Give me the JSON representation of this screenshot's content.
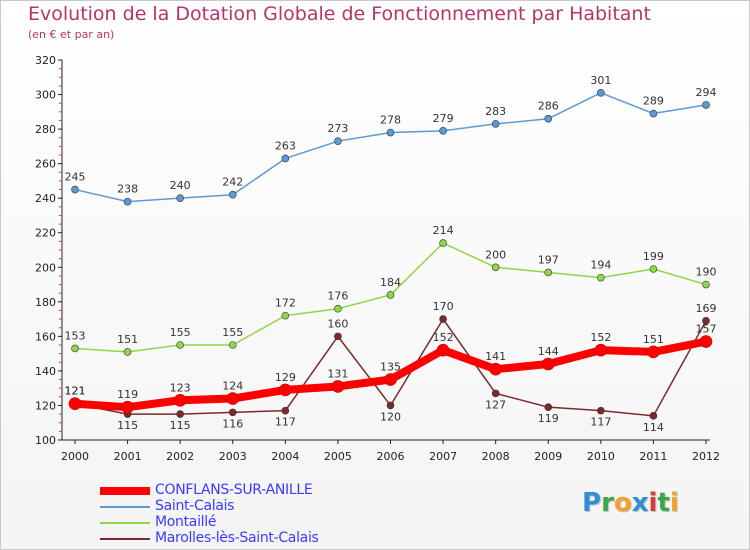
{
  "title": "Evolution de la Dotation Globale de Fonctionnement par Habitant",
  "subtitle": "(en € et par an)",
  "logo": {
    "letters": [
      "P",
      "r",
      "o",
      "x",
      "i",
      "t",
      "i"
    ],
    "colors": [
      "#2f8fd6",
      "#3aa64a",
      "#f2a22a",
      "#2f8fd6",
      "#d83a3a",
      "#3aa64a",
      "#f2a22a"
    ]
  },
  "chart_data": {
    "type": "line",
    "title": "Evolution de la Dotation Globale de Fonctionnement par Habitant",
    "subtitle": "(en € et par an)",
    "x": [
      "2000",
      "2001",
      "2002",
      "2003",
      "2004",
      "2005",
      "2006",
      "2007",
      "2008",
      "2009",
      "2010",
      "2011",
      "2012"
    ],
    "ylim": [
      100,
      320
    ],
    "yticks": [
      100,
      120,
      140,
      160,
      180,
      200,
      220,
      240,
      260,
      280,
      300,
      320
    ],
    "grid": false,
    "legend_position": "bottom-left",
    "series": [
      {
        "name": "CONFLANS-SUR-ANILLE",
        "color": "#ff0000",
        "values": [
          121,
          119,
          123,
          124,
          129,
          131,
          135,
          152,
          141,
          144,
          152,
          151,
          157
        ],
        "labels": [
          "121",
          "119",
          "123",
          "124",
          "129",
          "131",
          "135",
          "152",
          "141",
          "144",
          "152",
          "151",
          "157"
        ]
      },
      {
        "name": "Saint-Calais",
        "color": "#5b9bd5",
        "values": [
          245,
          238,
          240,
          242,
          263,
          273,
          278,
          279,
          283,
          286,
          301,
          289,
          294
        ],
        "labels": [
          "245",
          "238",
          "240",
          "242",
          "263",
          "273",
          "278",
          "279",
          "283",
          "286",
          "301",
          "289",
          "294"
        ]
      },
      {
        "name": "Montaillé",
        "color": "#8ed64a",
        "values": [
          153,
          151,
          155,
          155,
          172,
          176,
          184,
          214,
          200,
          197,
          194,
          199,
          190
        ],
        "labels": [
          "153",
          "151",
          "155",
          "155",
          "172",
          "176",
          "184",
          "214",
          "200",
          "197",
          "194",
          "199",
          "190"
        ]
      },
      {
        "name": "Marolles-lès-Saint-Calais",
        "color": "#7a2a2a",
        "values": [
          121,
          115,
          115,
          116,
          117,
          160,
          120,
          170,
          127,
          119,
          117,
          114,
          169
        ],
        "labels": [
          "121",
          "115",
          "115",
          "116",
          "117",
          "160",
          "120",
          "170",
          "127",
          "119",
          "117",
          "114",
          "169"
        ]
      }
    ]
  }
}
